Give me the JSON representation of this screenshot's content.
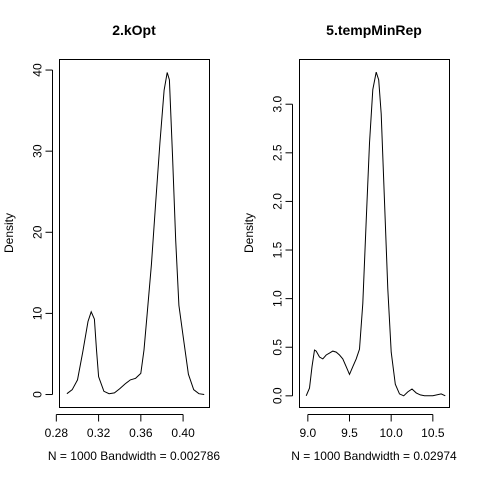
{
  "chart_data": [
    {
      "type": "line",
      "title": "2.kOpt",
      "xlabel": "N = 1000   Bandwidth = 0.002786",
      "ylabel": "Density",
      "xlim": [
        0.283,
        0.425
      ],
      "ylim": [
        -1.6,
        41.3
      ],
      "x_ticks": [
        0.28,
        0.32,
        0.36,
        0.4
      ],
      "x_tick_labels": [
        "0.28",
        "0.32",
        "0.36",
        "0.40"
      ],
      "y_ticks": [
        0,
        10,
        20,
        30,
        40
      ],
      "y_tick_labels": [
        "0",
        "10",
        "20",
        "30",
        "40"
      ],
      "grid": false,
      "series": [
        {
          "x": [
            0.29,
            0.295,
            0.3,
            0.305,
            0.31,
            0.313,
            0.316,
            0.318,
            0.32,
            0.325,
            0.33,
            0.335,
            0.34,
            0.345,
            0.35,
            0.355,
            0.36,
            0.363,
            0.366,
            0.37,
            0.374,
            0.378,
            0.382,
            0.385,
            0.387,
            0.39,
            0.393,
            0.396,
            0.4,
            0.405,
            0.41,
            0.415,
            0.42
          ],
          "y": [
            0.1,
            0.6,
            1.8,
            5.2,
            9.0,
            10.2,
            9.3,
            5.5,
            2.2,
            0.4,
            0.1,
            0.2,
            0.7,
            1.3,
            1.8,
            2.0,
            2.6,
            5.5,
            10.0,
            16.0,
            23.5,
            31.0,
            37.5,
            39.7,
            38.8,
            29.5,
            19.0,
            11.0,
            7.2,
            2.5,
            0.6,
            0.1,
            0.0
          ]
        }
      ]
    },
    {
      "type": "line",
      "title": "5.tempMinRep",
      "xlabel": "N = 1000   Bandwidth = 0.02974",
      "ylabel": "Density",
      "xlim": [
        8.9,
        10.7
      ],
      "ylim": [
        -0.12,
        3.46
      ],
      "x_ticks": [
        9.0,
        9.5,
        10.0,
        10.5
      ],
      "x_tick_labels": [
        "9.0",
        "9.5",
        "10.0",
        "10.5"
      ],
      "y_ticks": [
        0.0,
        0.5,
        1.0,
        1.5,
        2.0,
        2.5,
        3.0
      ],
      "y_tick_labels": [
        "0.0",
        "0.5",
        "1.0",
        "1.5",
        "2.0",
        "2.5",
        "3.0"
      ],
      "grid": false,
      "series": [
        {
          "x": [
            8.98,
            9.02,
            9.05,
            9.08,
            9.1,
            9.14,
            9.18,
            9.22,
            9.26,
            9.3,
            9.34,
            9.38,
            9.42,
            9.46,
            9.5,
            9.54,
            9.58,
            9.62,
            9.66,
            9.7,
            9.74,
            9.78,
            9.82,
            9.85,
            9.88,
            9.92,
            9.96,
            10.0,
            10.05,
            10.1,
            10.15,
            10.2,
            10.25,
            10.3,
            10.35,
            10.4,
            10.5,
            10.6,
            10.65
          ],
          "y": [
            0.0,
            0.08,
            0.3,
            0.47,
            0.46,
            0.4,
            0.38,
            0.42,
            0.44,
            0.46,
            0.45,
            0.42,
            0.38,
            0.3,
            0.22,
            0.3,
            0.38,
            0.48,
            0.95,
            1.8,
            2.6,
            3.15,
            3.33,
            3.25,
            2.9,
            2.0,
            1.1,
            0.45,
            0.12,
            0.02,
            0.0,
            0.04,
            0.07,
            0.03,
            0.01,
            0.0,
            0.0,
            0.02,
            0.0
          ]
        }
      ]
    }
  ]
}
